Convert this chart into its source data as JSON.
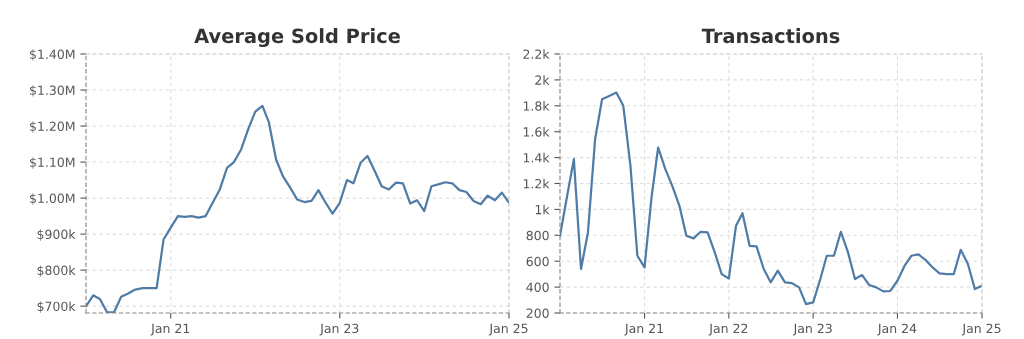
{
  "chart_data": [
    {
      "type": "line",
      "title": "Average Sold Price",
      "color": "#4f7ca6",
      "grid": true,
      "marker": "none",
      "line_style": "solid",
      "x": [
        "2020-01",
        "2020-02",
        "2020-03",
        "2020-04",
        "2020-05",
        "2020-06",
        "2020-07",
        "2020-08",
        "2020-09",
        "2020-10",
        "2020-11",
        "2020-12",
        "2021-01",
        "2021-02",
        "2021-03",
        "2021-04",
        "2021-05",
        "2021-06",
        "2021-07",
        "2021-08",
        "2021-09",
        "2021-10",
        "2021-11",
        "2021-12",
        "2022-01",
        "2022-02",
        "2022-03",
        "2022-04",
        "2022-05",
        "2022-06",
        "2022-07",
        "2022-08",
        "2022-09",
        "2022-10",
        "2022-11",
        "2022-12",
        "2023-01",
        "2023-02",
        "2023-03",
        "2023-04",
        "2023-05",
        "2023-06",
        "2023-07",
        "2023-08",
        "2023-09",
        "2023-10",
        "2023-11",
        "2023-12",
        "2024-01",
        "2024-02",
        "2024-03",
        "2024-04",
        "2024-05",
        "2024-06",
        "2024-07",
        "2024-08",
        "2024-09",
        "2024-10",
        "2024-11",
        "2024-12",
        "2025-01"
      ],
      "values": [
        700000,
        730000,
        720000,
        683000,
        683000,
        726000,
        735000,
        746000,
        750000,
        750000,
        750000,
        885000,
        918000,
        950000,
        948000,
        950000,
        946000,
        950000,
        987000,
        1024000,
        1084000,
        1100000,
        1135000,
        1190000,
        1240000,
        1256000,
        1210000,
        1107000,
        1060000,
        1029000,
        996000,
        989000,
        992000,
        1022000,
        987000,
        957000,
        987000,
        1050000,
        1041000,
        1098000,
        1117000,
        1075000,
        1033000,
        1024000,
        1043000,
        1041000,
        985000,
        994000,
        964000,
        1033000,
        1038000,
        1044000,
        1041000,
        1022000,
        1017000,
        992000,
        983000,
        1007000,
        994000,
        1015000,
        987000
      ],
      "xlim": [
        "2020-01",
        "2025-01"
      ],
      "xticks": [
        {
          "value": "2021-01",
          "label": "Jan 21"
        },
        {
          "value": "2023-01",
          "label": "Jan 23"
        },
        {
          "value": "2025-01",
          "label": "Jan 25"
        }
      ],
      "ylim": [
        681000,
        1400000
      ],
      "yticks": [
        {
          "value": 700000,
          "label": "$700k"
        },
        {
          "value": 800000,
          "label": "$800k"
        },
        {
          "value": 900000,
          "label": "$900k"
        },
        {
          "value": 1000000,
          "label": "$1.00M"
        },
        {
          "value": 1100000,
          "label": "$1.10M"
        },
        {
          "value": 1200000,
          "label": "$1.20M"
        },
        {
          "value": 1300000,
          "label": "$1.30M"
        },
        {
          "value": 1400000,
          "label": "$1.40M"
        }
      ]
    },
    {
      "type": "line",
      "title": "Transactions",
      "color": "#4f7ca6",
      "grid": true,
      "marker": "none",
      "line_style": "solid",
      "x": [
        "2020-01",
        "2020-02",
        "2020-03",
        "2020-04",
        "2020-05",
        "2020-06",
        "2020-07",
        "2020-08",
        "2020-09",
        "2020-10",
        "2020-11",
        "2020-12",
        "2021-01",
        "2021-02",
        "2021-03",
        "2021-04",
        "2021-05",
        "2021-06",
        "2021-07",
        "2021-08",
        "2021-09",
        "2021-10",
        "2021-11",
        "2021-12",
        "2022-01",
        "2022-02",
        "2022-03",
        "2022-04",
        "2022-05",
        "2022-06",
        "2022-07",
        "2022-08",
        "2022-09",
        "2022-10",
        "2022-11",
        "2022-12",
        "2023-01",
        "2023-02",
        "2023-03",
        "2023-04",
        "2023-05",
        "2023-06",
        "2023-07",
        "2023-08",
        "2023-09",
        "2023-10",
        "2023-11",
        "2023-12",
        "2024-01",
        "2024-02",
        "2024-03",
        "2024-04",
        "2024-05",
        "2024-06",
        "2024-07",
        "2024-08",
        "2024-09",
        "2024-10",
        "2024-11",
        "2024-12",
        "2025-01"
      ],
      "values": [
        796,
        1105,
        1388,
        540,
        822,
        1542,
        1850,
        1876,
        1902,
        1800,
        1336,
        642,
        552,
        1105,
        1478,
        1311,
        1182,
        1028,
        796,
        776,
        827,
        822,
        668,
        500,
        467,
        874,
        971,
        719,
        714,
        540,
        437,
        527,
        437,
        431,
        398,
        269,
        282,
        462,
        642,
        642,
        827,
        668,
        462,
        493,
        416,
        398,
        367,
        370,
        449,
        565,
        642,
        652,
        611,
        552,
        506,
        501,
        501,
        688,
        578,
        385,
        411
      ],
      "xlim": [
        "2020-01",
        "2025-01"
      ],
      "xticks": [
        {
          "value": "2021-01",
          "label": "Jan 21"
        },
        {
          "value": "2022-01",
          "label": "Jan 22"
        },
        {
          "value": "2023-01",
          "label": "Jan 23"
        },
        {
          "value": "2024-01",
          "label": "Jan 24"
        },
        {
          "value": "2025-01",
          "label": "Jan 25"
        }
      ],
      "ylim": [
        200,
        2200
      ],
      "yticks": [
        200,
        400,
        600,
        800,
        {
          "value": 1000,
          "label": "1k"
        },
        {
          "value": 1200,
          "label": "1.2k"
        },
        {
          "value": 1400,
          "label": "1.4k"
        },
        {
          "value": 1600,
          "label": "1.6k"
        },
        {
          "value": 1800,
          "label": "1.8k"
        },
        {
          "value": 2000,
          "label": "2k"
        },
        {
          "value": 2200,
          "label": "2.2k"
        }
      ]
    }
  ]
}
